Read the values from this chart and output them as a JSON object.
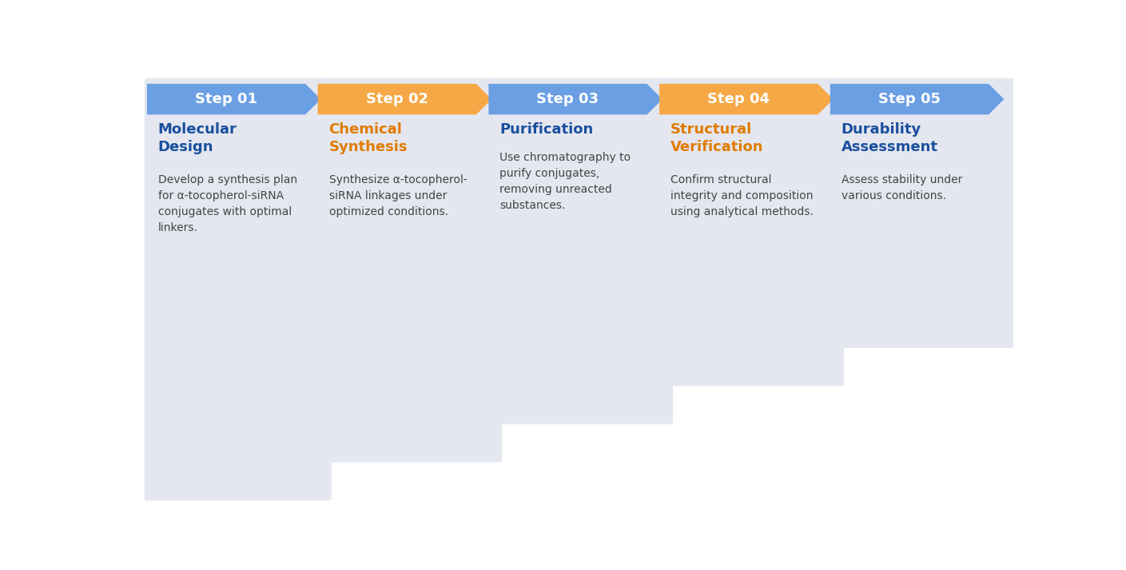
{
  "background_color": "#ffffff",
  "steps": [
    {
      "step_label": "Step 01",
      "title": "Molecular\nDesign",
      "body": "Develop a synthesis plan\nfor α-tocopherol-siRNA\nconjugates with optimal\nlinkers.",
      "step_color": "#6b9fe4",
      "title_color": "#1a4f9e",
      "body_color": "#444444"
    },
    {
      "step_label": "Step 02",
      "title": "Chemical\nSynthesis",
      "body": "Synthesize α-tocopherol-\nsiRNA linkages under\noptimized conditions.",
      "step_color": "#f5a845",
      "title_color": "#e07b00",
      "body_color": "#444444"
    },
    {
      "step_label": "Step 03",
      "title": "Purification",
      "body": "Use chromatography to\npurify conjugates,\nremoving unreacted\nsubstances.",
      "step_color": "#6b9fe4",
      "title_color": "#1a4f9e",
      "body_color": "#444444"
    },
    {
      "step_label": "Step 04",
      "title": "Structural\nVerification",
      "body": "Confirm structural\nintegrity and composition\nusing analytical methods.",
      "step_color": "#f5a845",
      "title_color": "#e07b00",
      "body_color": "#444444"
    },
    {
      "step_label": "Step 05",
      "title": "Durability\nAssessment",
      "body": "Assess stability under\nvarious conditions.",
      "step_color": "#6b9fe4",
      "title_color": "#1a4f9e",
      "body_color": "#444444"
    }
  ],
  "card_bg": "#e4e7ef",
  "n_steps": 5
}
